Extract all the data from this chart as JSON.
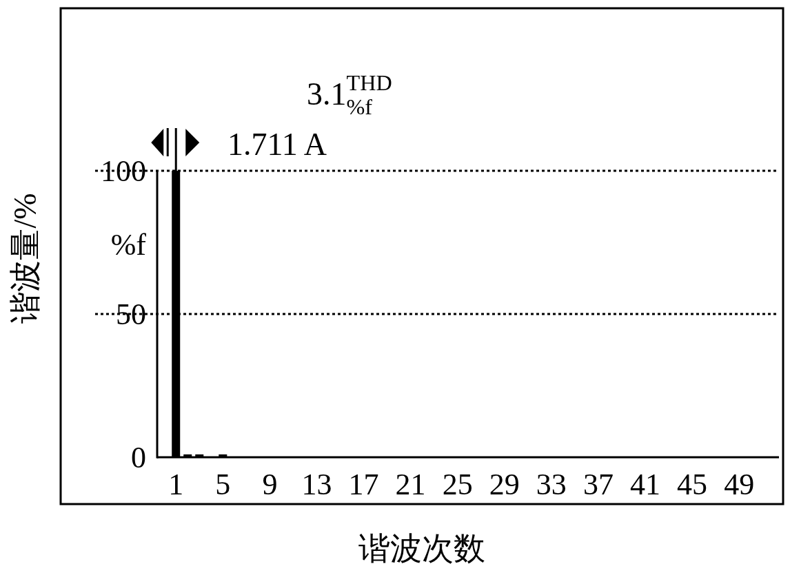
{
  "chart_data": {
    "type": "bar",
    "xlabel": "谐波次数",
    "ylabel": "谐波量/%",
    "x": [
      1,
      2,
      3,
      5
    ],
    "values": [
      100,
      1,
      1,
      1
    ],
    "color": "#000000",
    "xlim": [
      -0.6,
      52.4
    ],
    "ylim": [
      0,
      100
    ],
    "xticks": [
      1,
      5,
      9,
      13,
      17,
      21,
      25,
      29,
      33,
      37,
      41,
      45,
      49
    ],
    "yticks": [
      0,
      50,
      100
    ],
    "grid": "y",
    "annotations": [
      "3.1$^{THD}$$_{%f}$",
      "1.711 A",
      "%f"
    ]
  }
}
